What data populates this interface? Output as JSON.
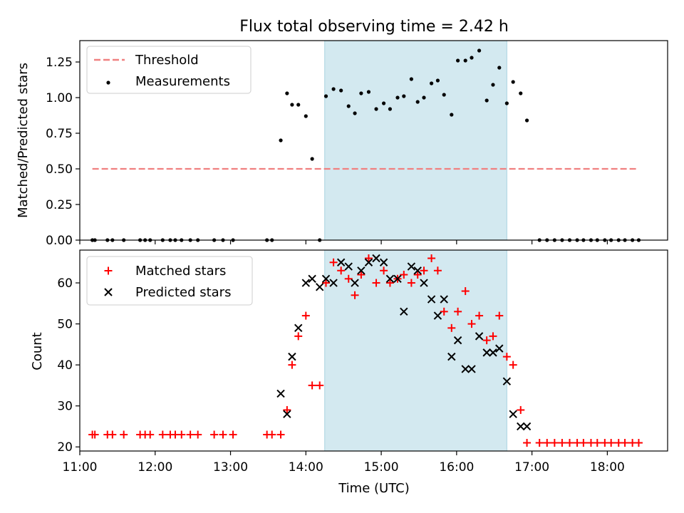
{
  "colors": {
    "shade": "#d3e9f0",
    "shade_edge": "#a9d3e0",
    "threshold": "#f08080",
    "measurements": "#000000",
    "matched": "#ff0000",
    "predicted": "#000000"
  },
  "chart_data": [
    {
      "type": "scatter",
      "title": "Flux total observing time = 2.42 h",
      "xlabel": "",
      "ylabel": "Matched/Predicted stars",
      "xlim": [
        "11:00",
        "18:48"
      ],
      "ylim": [
        0,
        1.4
      ],
      "yticks": [
        0,
        0.25,
        0.5,
        0.75,
        1.0,
        1.25
      ],
      "ytick_labels": [
        "0.00",
        "0.25",
        "0.50",
        "0.75",
        "1.00",
        "1.25"
      ],
      "grid": false,
      "legend_position": "top-left",
      "shaded_interval": [
        "14:15",
        "16:40"
      ],
      "series": [
        {
          "name": "Threshold",
          "style": "dashed-line",
          "x": [
            "11:10",
            "18:25"
          ],
          "y": [
            0.5,
            0.5
          ]
        },
        {
          "name": "Measurements",
          "style": "dots",
          "x": [
            "11:10",
            "11:12",
            "11:22",
            "11:26",
            "11:35",
            "11:48",
            "11:52",
            "11:56",
            "12:06",
            "12:12",
            "12:16",
            "12:21",
            "12:28",
            "12:34",
            "12:47",
            "12:54",
            "13:02",
            "13:29",
            "13:33",
            "13:40",
            "13:45",
            "13:49",
            "13:54",
            "14:00",
            "14:05",
            "14:11",
            "14:16",
            "14:22",
            "14:28",
            "14:34",
            "14:39",
            "14:44",
            "14:50",
            "14:56",
            "15:02",
            "15:07",
            "15:13",
            "15:18",
            "15:24",
            "15:29",
            "15:34",
            "15:40",
            "15:45",
            "15:50",
            "15:56",
            "16:01",
            "16:07",
            "16:12",
            "16:18",
            "16:24",
            "16:29",
            "16:34",
            "16:40",
            "16:45",
            "16:51",
            "16:56",
            "17:06",
            "17:12",
            "17:18",
            "17:24",
            "17:30",
            "17:36",
            "17:41",
            "17:47",
            "17:52",
            "17:58",
            "18:03",
            "18:09",
            "18:14",
            "18:20",
            "18:25"
          ],
          "y": [
            0,
            0,
            0,
            0,
            0,
            0,
            0,
            0,
            0,
            0,
            0,
            0,
            0,
            0,
            0,
            0,
            0,
            0,
            0,
            0.7,
            1.03,
            0.95,
            0.95,
            0.87,
            0.57,
            0,
            1.01,
            1.06,
            1.05,
            0.94,
            0.89,
            1.03,
            1.04,
            0.92,
            0.96,
            0.92,
            1.0,
            1.01,
            1.13,
            0.97,
            1.0,
            1.1,
            1.12,
            1.02,
            0.88,
            1.26,
            1.26,
            1.28,
            1.33,
            0.98,
            1.09,
            1.21,
            0.96,
            1.11,
            1.03,
            0.84,
            0,
            0,
            0,
            0,
            0,
            0,
            0,
            0,
            0,
            0,
            0,
            0,
            0,
            0,
            0
          ]
        }
      ]
    },
    {
      "type": "scatter",
      "title": "",
      "xlabel": "Time (UTC)",
      "ylabel": "Count",
      "xlim": [
        "11:00",
        "18:48"
      ],
      "ylim": [
        19,
        68
      ],
      "xticks": [
        "11:00",
        "12:00",
        "13:00",
        "14:00",
        "15:00",
        "16:00",
        "17:00",
        "18:00"
      ],
      "yticks": [
        20,
        30,
        40,
        50,
        60
      ],
      "grid": false,
      "legend_position": "top-left",
      "shaded_interval": [
        "14:15",
        "16:40"
      ],
      "series": [
        {
          "name": "Matched stars",
          "marker": "+",
          "x": [
            "11:10",
            "11:12",
            "11:22",
            "11:26",
            "11:35",
            "11:48",
            "11:52",
            "11:56",
            "12:06",
            "12:12",
            "12:16",
            "12:21",
            "12:28",
            "12:34",
            "12:47",
            "12:54",
            "13:02",
            "13:29",
            "13:33",
            "13:40",
            "13:45",
            "13:49",
            "13:54",
            "14:00",
            "14:05",
            "14:11",
            "14:16",
            "14:22",
            "14:28",
            "14:34",
            "14:39",
            "14:44",
            "14:50",
            "14:56",
            "15:02",
            "15:07",
            "15:13",
            "15:18",
            "15:24",
            "15:29",
            "15:34",
            "15:40",
            "15:45",
            "15:50",
            "15:56",
            "16:01",
            "16:07",
            "16:12",
            "16:18",
            "16:24",
            "16:29",
            "16:34",
            "16:40",
            "16:45",
            "16:51",
            "16:56",
            "17:06",
            "17:12",
            "17:18",
            "17:24",
            "17:30",
            "17:36",
            "17:41",
            "17:47",
            "17:52",
            "17:58",
            "18:03",
            "18:09",
            "18:14",
            "18:20",
            "18:25"
          ],
          "y": [
            23,
            23,
            23,
            23,
            23,
            23,
            23,
            23,
            23,
            23,
            23,
            23,
            23,
            23,
            23,
            23,
            23,
            23,
            23,
            23,
            29,
            40,
            47,
            52,
            35,
            35,
            60,
            65,
            63,
            61,
            57,
            62,
            66,
            60,
            63,
            60,
            61,
            62,
            60,
            62,
            63,
            66,
            63,
            53,
            49,
            53,
            58,
            50,
            52,
            46,
            47,
            52,
            42,
            40,
            29,
            21,
            21,
            21,
            21,
            21,
            21,
            21,
            21,
            21,
            21,
            21,
            21,
            21,
            21,
            21,
            21
          ]
        },
        {
          "name": "Predicted stars",
          "marker": "x",
          "x": [
            "13:40",
            "13:45",
            "13:49",
            "13:54",
            "14:00",
            "14:05",
            "14:11",
            "14:16",
            "14:22",
            "14:28",
            "14:34",
            "14:39",
            "14:44",
            "14:50",
            "14:56",
            "15:02",
            "15:07",
            "15:13",
            "15:18",
            "15:24",
            "15:29",
            "15:34",
            "15:40",
            "15:45",
            "15:50",
            "15:56",
            "16:01",
            "16:07",
            "16:12",
            "16:18",
            "16:24",
            "16:29",
            "16:34",
            "16:40",
            "16:45",
            "16:51",
            "16:56"
          ],
          "y": [
            33,
            28,
            42,
            49,
            60,
            61,
            59,
            61,
            60,
            65,
            64,
            60,
            63,
            65,
            66,
            65,
            61,
            61,
            53,
            64,
            63,
            60,
            56,
            52,
            56,
            42,
            46,
            39,
            39,
            47,
            43,
            43,
            44,
            36,
            28,
            25,
            25
          ]
        }
      ]
    }
  ]
}
